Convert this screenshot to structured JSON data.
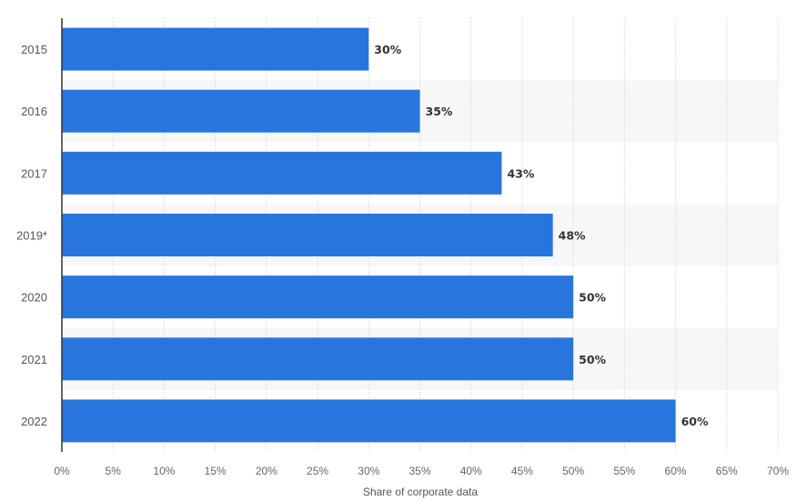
{
  "chart_data": {
    "type": "bar",
    "orientation": "horizontal",
    "categories": [
      "2015",
      "2016",
      "2017",
      "2019*",
      "2020",
      "2021",
      "2022"
    ],
    "values": [
      30,
      35,
      43,
      48,
      50,
      50,
      60
    ],
    "data_labels": [
      "30%",
      "35%",
      "43%",
      "48%",
      "50%",
      "50%",
      "60%"
    ],
    "xlim": [
      0,
      70
    ],
    "x_ticks": [
      0,
      5,
      10,
      15,
      20,
      25,
      30,
      35,
      40,
      45,
      50,
      55,
      60,
      65,
      70
    ],
    "x_tick_labels": [
      "0%",
      "5%",
      "10%",
      "15%",
      "20%",
      "25%",
      "30%",
      "35%",
      "40%",
      "45%",
      "50%",
      "55%",
      "60%",
      "65%",
      "70%"
    ],
    "xlabel": "Share of corporate data",
    "ylabel": "",
    "grid": "vertical dotted",
    "legend": "none",
    "colors": {
      "bar": "#2876dd",
      "band": "#f7f7f7",
      "grid": "#cccccc",
      "axis": "#333333"
    }
  }
}
